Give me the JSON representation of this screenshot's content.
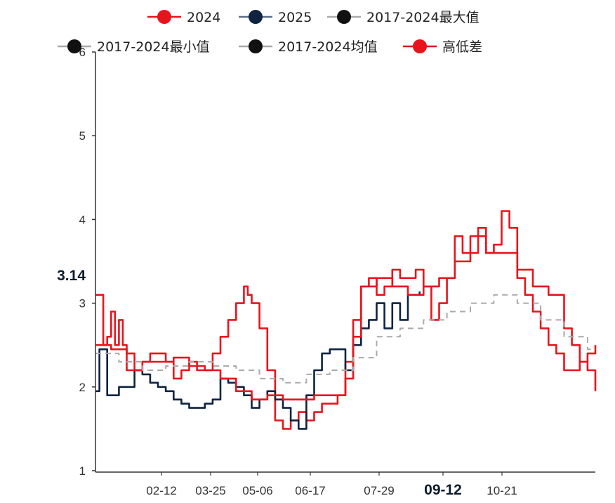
{
  "chart_data": {
    "type": "line",
    "ylim": [
      1,
      6
    ],
    "y_ticks": [
      "1",
      "2",
      "3",
      "4",
      "5",
      "6"
    ],
    "x_tick_labels": [
      "02-12",
      "03-25",
      "05-06",
      "06-17",
      "07-29",
      "09-12",
      "10-21"
    ],
    "cursor": {
      "y_value": "3.14",
      "x_value": "09-12"
    },
    "legend": {
      "position": "top",
      "entries": [
        "2024",
        "2025",
        "2017-2024最大值",
        "2017-2024最小值",
        "2017-2024均值",
        "高低差"
      ]
    },
    "series": [
      {
        "name": "2024",
        "color": "#e8141c",
        "style": "solid",
        "points": [
          [
            0,
            3.1
          ],
          [
            1,
            2.5
          ],
          [
            1.5,
            2.6
          ],
          [
            2,
            2.9
          ],
          [
            2.5,
            2.5
          ],
          [
            3,
            2.8
          ],
          [
            3.5,
            2.5
          ],
          [
            4,
            2.4
          ],
          [
            4.5,
            2.4
          ],
          [
            5,
            2.2
          ],
          [
            6,
            2.3
          ],
          [
            7,
            2.4
          ],
          [
            8,
            2.4
          ],
          [
            9,
            2.3
          ],
          [
            10,
            2.1
          ],
          [
            11,
            2.2
          ],
          [
            12,
            2.3
          ],
          [
            13,
            2.2
          ],
          [
            14,
            2.2
          ],
          [
            15,
            2.4
          ],
          [
            16,
            2.6
          ],
          [
            17,
            2.8
          ],
          [
            18,
            3.0
          ],
          [
            19,
            3.2
          ],
          [
            19.5,
            3.1
          ],
          [
            20,
            3.0
          ],
          [
            21,
            2.7
          ],
          [
            22,
            2.2
          ],
          [
            23,
            1.6
          ],
          [
            24,
            1.5
          ],
          [
            25,
            1.6
          ],
          [
            26,
            1.7
          ],
          [
            27,
            1.6
          ],
          [
            28,
            1.7
          ],
          [
            29,
            1.8
          ],
          [
            30,
            1.8
          ],
          [
            31,
            1.9
          ],
          [
            32,
            2.3
          ],
          [
            33,
            2.8
          ],
          [
            34,
            3.2
          ],
          [
            35,
            3.3
          ],
          [
            36,
            3.1
          ],
          [
            37,
            3.2
          ],
          [
            38,
            3.4
          ],
          [
            39,
            3.3
          ],
          [
            40,
            3.3
          ],
          [
            41,
            3.4
          ],
          [
            42,
            3.2
          ],
          [
            43,
            2.8
          ],
          [
            44,
            3.0
          ],
          [
            45,
            3.3
          ],
          [
            46,
            3.8
          ],
          [
            47,
            3.6
          ],
          [
            48,
            3.6
          ],
          [
            49,
            3.9
          ],
          [
            50,
            3.6
          ],
          [
            51,
            3.7
          ],
          [
            52,
            4.1
          ],
          [
            53,
            3.9
          ],
          [
            54,
            3.3
          ],
          [
            55,
            3.1
          ],
          [
            56,
            2.9
          ],
          [
            57,
            2.7
          ],
          [
            58,
            2.5
          ],
          [
            59,
            2.4
          ],
          [
            60,
            2.2
          ],
          [
            61,
            2.2
          ],
          [
            62,
            2.3
          ],
          [
            63,
            2.4
          ],
          [
            64,
            2.5
          ]
        ]
      },
      {
        "name": "2025",
        "color": "#0d2340",
        "style": "solid",
        "points": [
          [
            0,
            1.95
          ],
          [
            0.5,
            2.45
          ],
          [
            1,
            2.45
          ],
          [
            1.5,
            1.9
          ],
          [
            2,
            1.9
          ],
          [
            3,
            2.0
          ],
          [
            4,
            2.0
          ],
          [
            5,
            2.2
          ],
          [
            6,
            2.15
          ],
          [
            7,
            2.05
          ],
          [
            8,
            2.0
          ],
          [
            9,
            1.95
          ],
          [
            10,
            1.85
          ],
          [
            11,
            1.8
          ],
          [
            12,
            1.75
          ],
          [
            13,
            1.75
          ],
          [
            14,
            1.8
          ],
          [
            15,
            1.85
          ],
          [
            16,
            2.1
          ],
          [
            17,
            2.05
          ],
          [
            18,
            2.0
          ],
          [
            19,
            1.9
          ],
          [
            20,
            1.75
          ],
          [
            21,
            1.85
          ],
          [
            22,
            1.95
          ],
          [
            23,
            1.85
          ],
          [
            24,
            1.75
          ],
          [
            25,
            1.6
          ],
          [
            26,
            1.5
          ],
          [
            27,
            1.9
          ],
          [
            28,
            2.2
          ],
          [
            29,
            2.4
          ],
          [
            30,
            2.45
          ],
          [
            31,
            2.45
          ],
          [
            32,
            2.2
          ],
          [
            33,
            2.5
          ],
          [
            34,
            2.7
          ],
          [
            35,
            2.8
          ],
          [
            36,
            3.0
          ],
          [
            37,
            2.7
          ],
          [
            38,
            3.0
          ],
          [
            39,
            2.8
          ],
          [
            40,
            3.1
          ],
          [
            41,
            3.1
          ],
          [
            41.5,
            3.14
          ]
        ]
      },
      {
        "name": "2017-2024最大值",
        "color": "#e8141c",
        "style": "solid",
        "points": [
          [
            0,
            2.5
          ],
          [
            2,
            2.45
          ],
          [
            4,
            2.2
          ],
          [
            6,
            2.3
          ],
          [
            8,
            2.3
          ],
          [
            10,
            2.35
          ],
          [
            12,
            2.25
          ],
          [
            14,
            2.2
          ],
          [
            16,
            2.1
          ],
          [
            18,
            1.95
          ],
          [
            20,
            1.85
          ],
          [
            22,
            1.9
          ],
          [
            24,
            1.85
          ],
          [
            26,
            1.85
          ],
          [
            28,
            1.9
          ],
          [
            30,
            1.9
          ],
          [
            32,
            2.1
          ],
          [
            33,
            2.6
          ],
          [
            34,
            3.2
          ],
          [
            36,
            3.3
          ],
          [
            38,
            3.2
          ],
          [
            40,
            3.1
          ],
          [
            42,
            3.2
          ],
          [
            44,
            3.3
          ],
          [
            46,
            3.5
          ],
          [
            48,
            3.8
          ],
          [
            50,
            3.6
          ],
          [
            52,
            3.6
          ],
          [
            54,
            3.4
          ],
          [
            56,
            3.2
          ],
          [
            58,
            3.1
          ],
          [
            60,
            2.7
          ],
          [
            61,
            2.5
          ],
          [
            62,
            2.3
          ],
          [
            63,
            2.2
          ],
          [
            64,
            1.95
          ]
        ]
      },
      {
        "name": "2017-2024均值",
        "color": "#aaaaaa",
        "style": "dashed",
        "points": [
          [
            0,
            2.4
          ],
          [
            3,
            2.3
          ],
          [
            6,
            2.2
          ],
          [
            9,
            2.25
          ],
          [
            12,
            2.3
          ],
          [
            15,
            2.25
          ],
          [
            18,
            2.2
          ],
          [
            21,
            2.1
          ],
          [
            24,
            2.05
          ],
          [
            27,
            2.15
          ],
          [
            30,
            2.2
          ],
          [
            33,
            2.35
          ],
          [
            36,
            2.6
          ],
          [
            39,
            2.7
          ],
          [
            42,
            2.8
          ],
          [
            45,
            2.9
          ],
          [
            48,
            3.0
          ],
          [
            51,
            3.1
          ],
          [
            54,
            3.0
          ],
          [
            57,
            2.8
          ],
          [
            60,
            2.6
          ],
          [
            63,
            2.45
          ],
          [
            64,
            2.45
          ]
        ]
      }
    ]
  }
}
